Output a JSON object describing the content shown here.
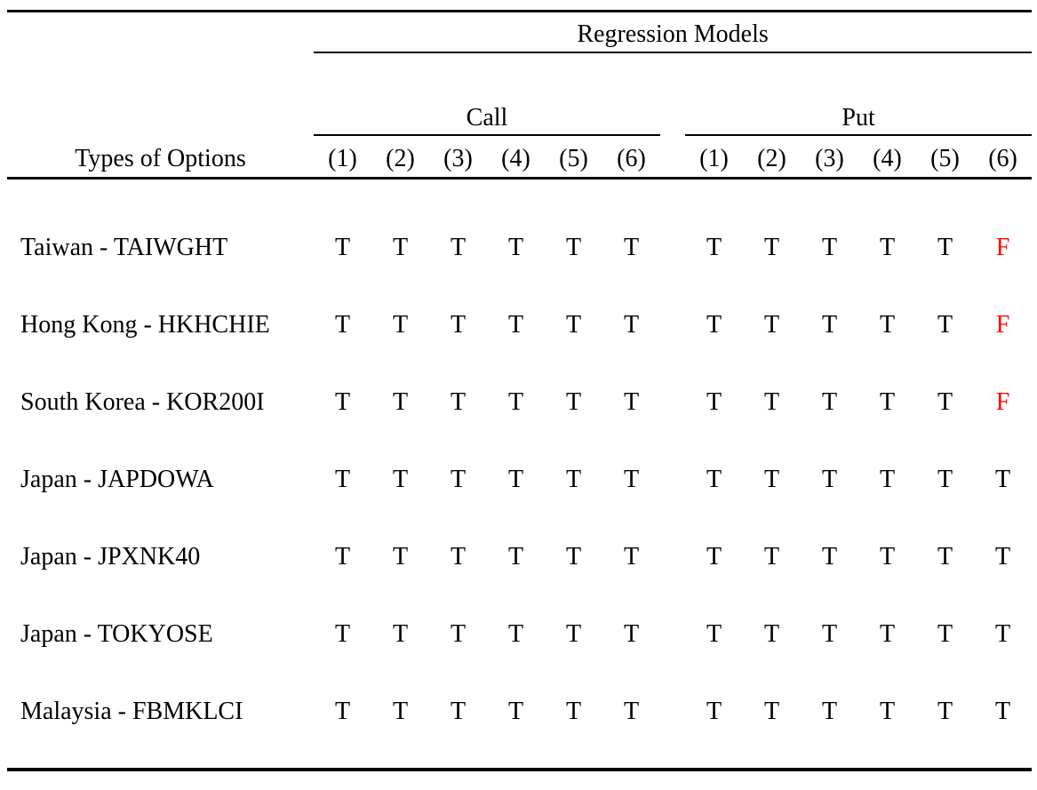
{
  "table": {
    "title": "Regression Models",
    "row_header": "Types of Options",
    "groups": [
      {
        "label": "Call",
        "columns": [
          "(1)",
          "(2)",
          "(3)",
          "(4)",
          "(5)",
          "(6)"
        ]
      },
      {
        "label": "Put",
        "columns": [
          "(1)",
          "(2)",
          "(3)",
          "(4)",
          "(5)",
          "(6)"
        ]
      }
    ],
    "rows": [
      {
        "label": "Taiwan - TAIWGHT",
        "call": [
          "T",
          "T",
          "T",
          "T",
          "T",
          "T"
        ],
        "put": [
          "T",
          "T",
          "T",
          "T",
          "T",
          "F"
        ]
      },
      {
        "label": "Hong Kong - HKHCHIE",
        "call": [
          "T",
          "T",
          "T",
          "T",
          "T",
          "T"
        ],
        "put": [
          "T",
          "T",
          "T",
          "T",
          "T",
          "F"
        ]
      },
      {
        "label": "South Korea - KOR200I",
        "call": [
          "T",
          "T",
          "T",
          "T",
          "T",
          "T"
        ],
        "put": [
          "T",
          "T",
          "T",
          "T",
          "T",
          "F"
        ]
      },
      {
        "label": "Japan - JAPDOWA",
        "call": [
          "T",
          "T",
          "T",
          "T",
          "T",
          "T"
        ],
        "put": [
          "T",
          "T",
          "T",
          "T",
          "T",
          "T"
        ]
      },
      {
        "label": "Japan - JPXNK40",
        "call": [
          "T",
          "T",
          "T",
          "T",
          "T",
          "T"
        ],
        "put": [
          "T",
          "T",
          "T",
          "T",
          "T",
          "T"
        ]
      },
      {
        "label": "Japan - TOKYOSE",
        "call": [
          "T",
          "T",
          "T",
          "T",
          "T",
          "T"
        ],
        "put": [
          "T",
          "T",
          "T",
          "T",
          "T",
          "T"
        ]
      },
      {
        "label": "Malaysia - FBMKLCI",
        "call": [
          "T",
          "T",
          "T",
          "T",
          "T",
          "T"
        ],
        "put": [
          "T",
          "T",
          "T",
          "T",
          "T",
          "T"
        ]
      }
    ]
  },
  "colors": {
    "background": "#ffffff",
    "text": "#000000",
    "rule": "#000000",
    "true_value": "#000000",
    "false_value": "#ff0000"
  }
}
